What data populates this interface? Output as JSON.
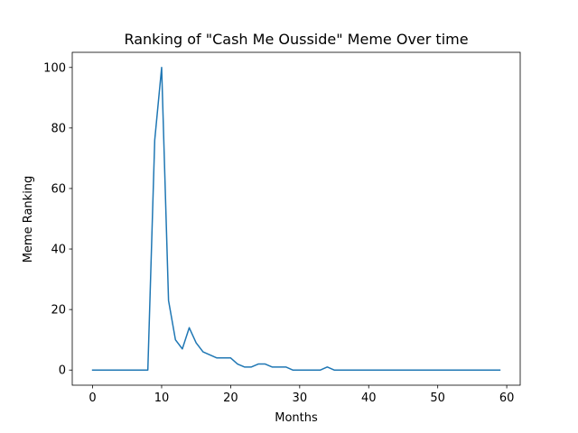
{
  "chart_data": {
    "type": "line",
    "title": "Ranking of \"Cash Me Ousside\" Meme Over time",
    "xlabel": "Months",
    "ylabel": "Meme Ranking",
    "xlim": [
      -2.95,
      61.95
    ],
    "ylim": [
      -5,
      105
    ],
    "x_ticks": [
      0,
      10,
      20,
      30,
      40,
      50,
      60
    ],
    "y_ticks": [
      0,
      20,
      40,
      60,
      80,
      100
    ],
    "grid": false,
    "series": [
      {
        "color": "#1f77b4",
        "x": [
          0,
          1,
          2,
          3,
          4,
          5,
          6,
          7,
          8,
          9,
          10,
          11,
          12,
          13,
          14,
          15,
          16,
          17,
          18,
          19,
          20,
          21,
          22,
          23,
          24,
          25,
          26,
          27,
          28,
          29,
          30,
          31,
          32,
          33,
          34,
          35,
          36,
          37,
          38,
          39,
          40,
          41,
          42,
          43,
          44,
          45,
          46,
          47,
          48,
          49,
          50,
          51,
          52,
          53,
          54,
          55,
          56,
          57,
          58,
          59
        ],
        "y": [
          0,
          0,
          0,
          0,
          0,
          0,
          0,
          0,
          0,
          76,
          100,
          23,
          10,
          7,
          14,
          9,
          6,
          5,
          4,
          4,
          4,
          2,
          1,
          1,
          2,
          2,
          1,
          1,
          1,
          0,
          0,
          0,
          0,
          0,
          1,
          0,
          0,
          0,
          0,
          0,
          0,
          0,
          0,
          0,
          0,
          0,
          0,
          0,
          0,
          0,
          0,
          0,
          0,
          0,
          0,
          0,
          0,
          0,
          0,
          0
        ]
      }
    ]
  }
}
